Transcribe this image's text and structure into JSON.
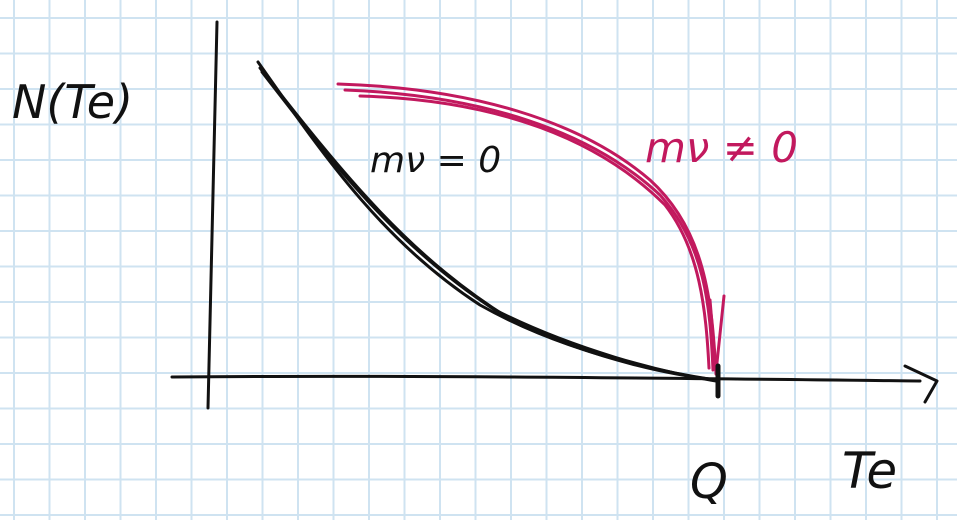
{
  "labels": {
    "y_axis": "N(Te)",
    "x_axis": "Te",
    "endpoint": "Q",
    "curve_massless": "mν = 0",
    "curve_massive": "mν ≠ 0"
  },
  "colors": {
    "background": "#ffffff",
    "grid": "#cfe3f1",
    "ink": "#111111",
    "magenta": "#c2195e"
  },
  "icons": {
    "x_axis_arrowhead": "arrowhead-icon"
  }
}
